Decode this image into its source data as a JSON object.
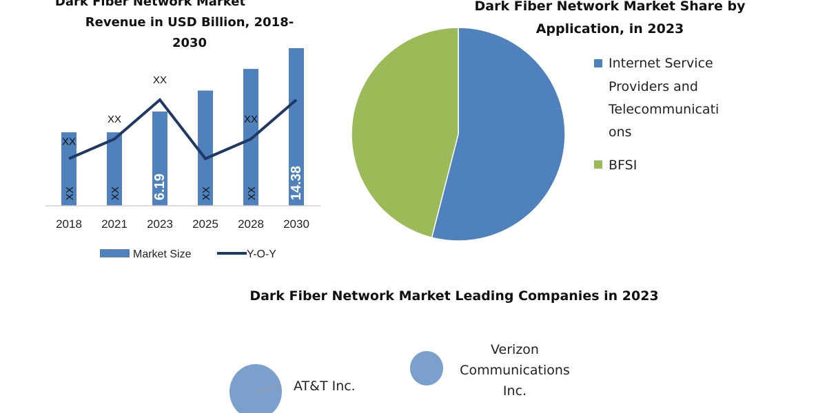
{
  "chart_data": [
    {
      "type": "bar",
      "title_lines": [
        "Dark Fiber Network Market",
        "Revenue in USD Billion, 2018-",
        "2030"
      ],
      "categories": [
        "2018",
        "2021",
        "2023",
        "2025",
        "2028",
        "2030"
      ],
      "series": [
        {
          "name": "Market Size",
          "kind": "bar",
          "values": [
            3.5,
            3.5,
            6.19,
            8.9,
            11.7,
            14.38
          ],
          "labels": [
            "XX",
            "XX",
            "6.19",
            "XX",
            "XX",
            "14.38"
          ],
          "color": "#4f81bd"
        },
        {
          "name": "Y-O-Y",
          "kind": "line",
          "values": [
            1,
            2,
            4,
            1,
            2,
            4
          ],
          "labels": [
            "XX",
            "XX",
            "XX",
            "",
            "XX",
            ""
          ],
          "color": "#1f3864"
        }
      ],
      "legend": "bottom",
      "grid": false
    },
    {
      "type": "pie",
      "title_lines": [
        "Dark Fiber Network Market Share by",
        "Application, in 2023"
      ],
      "slices": [
        {
          "label_lines": [
            "Internet Service",
            "Providers and",
            "Telecommunicati",
            "ons"
          ],
          "value": 54,
          "color": "#4f81bd"
        },
        {
          "label_lines": [
            "BFSI"
          ],
          "value": 46,
          "color": "#9bbb59"
        }
      ],
      "legend": "right"
    },
    {
      "type": "scatter",
      "title": "Dark Fiber Network Market Leading Companies in 2023",
      "bubbles": [
        {
          "label": "AT&T Inc.",
          "color": "#7ba0cd"
        },
        {
          "label_lines": [
            "Verizon",
            "Communications",
            "Inc."
          ],
          "color": "#7ba0cd"
        }
      ]
    }
  ]
}
